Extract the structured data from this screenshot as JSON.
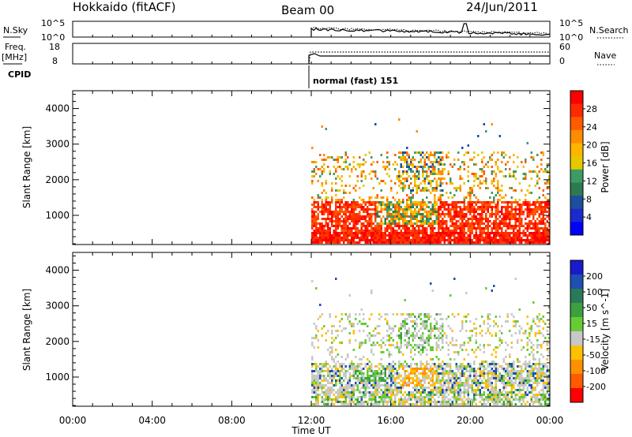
{
  "header": {
    "title": "Hokkaido (fitACF)",
    "beam": "Beam 00",
    "date": "24/Jun/2011"
  },
  "params": {
    "nsky_label": "N.Sky",
    "nsearch_label": "N.Search",
    "freq_label": "Freq.",
    "freq_unit": "[MHz]",
    "nave_label": "Nave",
    "cpid_label": "CPID",
    "cpid_value": "normal (fast) 151",
    "nsky_ticks": [
      "10^5",
      "10^0"
    ],
    "nsearch_ticks": [
      "10^5",
      "10^0"
    ],
    "freq_ticks": [
      "18",
      "8"
    ],
    "nave_ticks": [
      "60",
      "0"
    ]
  },
  "colorbars": {
    "power": {
      "label": "Power [dB]",
      "ticks": [
        "28",
        "24",
        "20",
        "16",
        "12",
        "8",
        "4"
      ],
      "colors": [
        "#ff0000",
        "#ff2a00",
        "#ff5a00",
        "#ff8c00",
        "#ffb400",
        "#e6c800",
        "#3c9c64",
        "#2c7a50",
        "#1e4ea0",
        "#1a2acc",
        "#0000ff"
      ]
    },
    "velocity": {
      "label": "Velocity [m s^-1]",
      "ticks": [
        "200",
        "100",
        "50",
        "15",
        "-15",
        "-50",
        "-100",
        "-200"
      ],
      "colors": [
        "#1a1acc",
        "#1f4fb0",
        "#2a7a58",
        "#3aa040",
        "#66cc33",
        "#c8c8c8",
        "#ffc000",
        "#ff9000",
        "#ff5a00",
        "#ff0000"
      ]
    }
  },
  "axes": {
    "xlabel": "Time UT",
    "xticks": [
      "00:00",
      "04:00",
      "08:00",
      "12:00",
      "16:00",
      "20:00",
      "00:00"
    ],
    "ylabel": "Slant Range [km]",
    "yticks": [
      "4000",
      "3000",
      "2000",
      "1000"
    ]
  },
  "chart_data": [
    {
      "type": "heatmap",
      "title": "Power",
      "ylabel": "Slant Range [km]",
      "xlabel": "",
      "x_range_hours": [
        0,
        24
      ],
      "y_range_km": [
        180,
        4500
      ],
      "colorbar_label": "Power [dB]",
      "colorbar_ticks": [
        4,
        8,
        12,
        16,
        20,
        24,
        28
      ],
      "data_start_hour": 12,
      "regions": [
        {
          "t": [
            12,
            24
          ],
          "r": [
            250,
            1400
          ],
          "value_db": 28
        },
        {
          "t": [
            15,
            18.3
          ],
          "r": [
            800,
            1500
          ],
          "value_db": 18
        },
        {
          "t": [
            15.8,
            18.5
          ],
          "r": [
            1600,
            2800
          ],
          "value_db": 20
        },
        {
          "t": [
            12,
            24
          ],
          "r": [
            1500,
            2700
          ],
          "value_db": 20
        }
      ]
    },
    {
      "type": "heatmap",
      "title": "Velocity",
      "ylabel": "Slant Range [km]",
      "xlabel": "Time UT",
      "x_range_hours": [
        0,
        24
      ],
      "y_range_km": [
        180,
        4500
      ],
      "colorbar_label": "Velocity [m s^-1]",
      "colorbar_ticks": [
        -200,
        -100,
        -50,
        -15,
        15,
        50,
        100,
        200
      ],
      "data_start_hour": 12,
      "regions": [
        {
          "t": [
            12,
            24
          ],
          "r": [
            250,
            1400
          ],
          "value_ms": 0
        },
        {
          "t": [
            16.3,
            18.3
          ],
          "r": [
            900,
            1500
          ],
          "value_ms": -60
        },
        {
          "t": [
            14,
            15.8
          ],
          "r": [
            950,
            1200
          ],
          "value_ms": 40
        },
        {
          "t": [
            12,
            24
          ],
          "r": [
            1500,
            2700
          ],
          "value_ms": 0
        }
      ]
    }
  ]
}
